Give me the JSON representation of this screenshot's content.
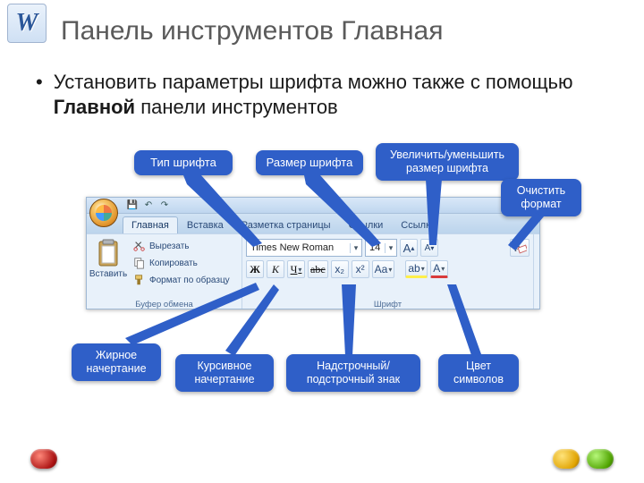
{
  "page_title": "Панель инструментов Главная",
  "bullet_html": "Установить параметры шрифта можно также с помощью <b>Главной</b> панели инструментов",
  "colors": {
    "callout_bg": "#2f5fc8",
    "callout_text": "#ffffff",
    "ribbon_bg_top": "#f0f6fc",
    "ribbon_bg_bottom": "#cadcf0"
  },
  "ribbon": {
    "app_hint": "word",
    "qat": {
      "save_icon": "💾",
      "undo_icon": "↶",
      "redo_icon": "↷"
    },
    "tabs": [
      {
        "label": "Главная",
        "active": true
      },
      {
        "label": "Вставка",
        "active": false
      },
      {
        "label": "Разметка страницы",
        "active": false
      },
      {
        "label": "Ссылки",
        "active": false
      },
      {
        "label": "Ссылки",
        "active": false
      }
    ],
    "clipboard": {
      "group_label": "Буфер обмена",
      "paste_label": "Вставить",
      "cut_label": "Вырезать",
      "copy_label": "Копировать",
      "brush_label": "Формат по образцу"
    },
    "font": {
      "group_label": "Шрифт",
      "name_value": "Times New Roman",
      "size_value": "14",
      "bold_glyph": "Ж",
      "italic_glyph": "К",
      "underline_glyph": "Ч",
      "strike_glyph": "abc",
      "subscript_glyph": "x₂",
      "superscript_glyph": "x²",
      "case_glyph": "Aa",
      "grow_glyph": "A",
      "shrink_glyph": "A",
      "clear_glyph": "A⃠",
      "highlight_glyph": "ab",
      "fontcolor_glyph": "A"
    }
  },
  "callouts": {
    "font_type": "Тип шрифта",
    "font_size": "Размер шрифта",
    "grow_shrink": "Увеличить/уменьшить размер шрифта",
    "clear_format": "Очистить формат",
    "bold": "Жирное начертание",
    "italic": "Курсивное начертание",
    "subsup": "Надстрочный/подстрочный знак",
    "color": "Цвет символов"
  }
}
